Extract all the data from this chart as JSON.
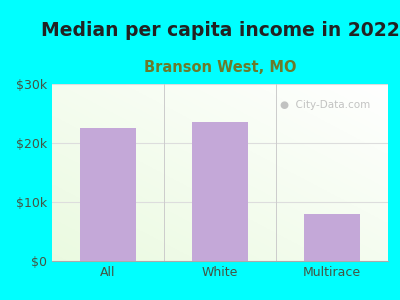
{
  "title": "Median per capita income in 2022",
  "subtitle": "Branson West, MO",
  "categories": [
    "All",
    "White",
    "Multirace"
  ],
  "values": [
    22500,
    23500,
    8000
  ],
  "bar_color": "#c4a8d8",
  "title_fontsize": 13.5,
  "title_color": "#222222",
  "subtitle_fontsize": 10.5,
  "subtitle_color": "#6b7a2a",
  "tick_label_color": "#445544",
  "background_outer": "#00ffff",
  "ylim": [
    0,
    30000
  ],
  "yticks": [
    0,
    10000,
    20000,
    30000
  ],
  "ytick_labels": [
    "$0",
    "$10k",
    "$20k",
    "$30k"
  ],
  "watermark": "City-Data.com",
  "divider_color": "#cccccc",
  "grid_color": "#dddddd"
}
